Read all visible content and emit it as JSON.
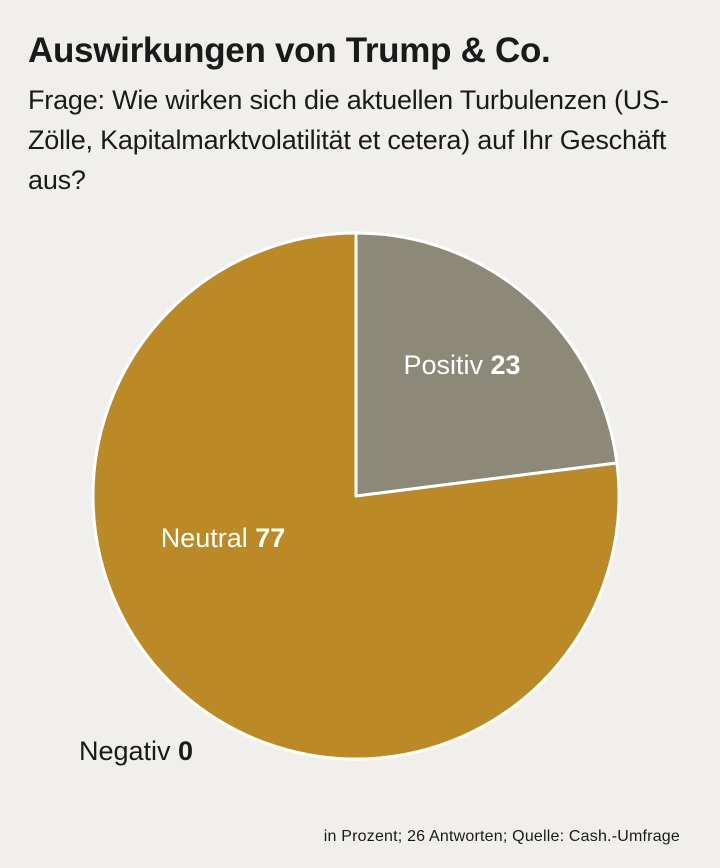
{
  "chart_data": {
    "type": "pie",
    "title": "Auswirkungen von Trump & Co.",
    "subtitle": "Frage: Wie wirken sich die aktuellen Turbulenzen (US-Zölle, Kapitalmarktvolatilität et cetera) auf Ihr Geschäft aus?",
    "categories": [
      "Positiv",
      "Neutral",
      "Negativ"
    ],
    "values": [
      23,
      77,
      0
    ],
    "value_labels": [
      "23",
      "77",
      "0"
    ],
    "colors": [
      "#8c8979",
      "#bb8a26",
      "#bb8a26"
    ],
    "label_colors": [
      "#ffffff",
      "#ffffff",
      "#1a1a1a"
    ],
    "legend": "none",
    "grid": false
  },
  "footnote": "in Prozent; 26 Antworten; Quelle: Cash.-Umfrage"
}
